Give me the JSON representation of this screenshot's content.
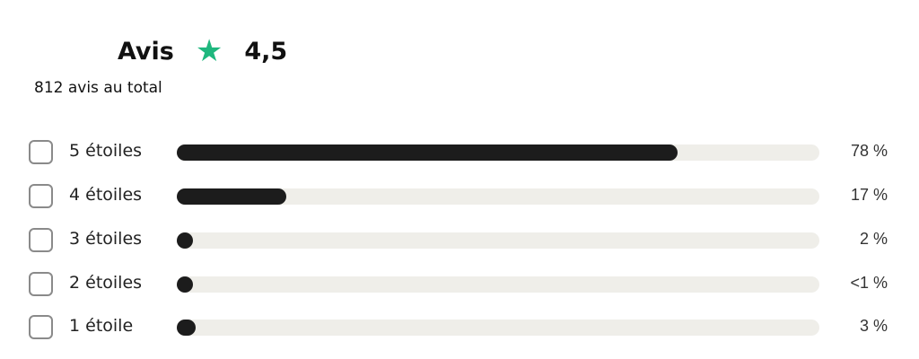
{
  "header": {
    "title": "Avis",
    "star_icon": "star-icon",
    "star_color": "#1fb77e",
    "rating": "4,5",
    "total": "812 avis au total"
  },
  "rows": [
    {
      "label": "5 étoiles",
      "percent_label": "78 %",
      "value": 78,
      "checked": false
    },
    {
      "label": "4 étoiles",
      "percent_label": "17 %",
      "value": 17,
      "checked": false
    },
    {
      "label": "3 étoiles",
      "percent_label": "2 %",
      "value": 2,
      "checked": false
    },
    {
      "label": "2 étoiles",
      "percent_label": "<1 %",
      "value": 0.5,
      "checked": false
    },
    {
      "label": "1 étoile",
      "percent_label": "3 %",
      "value": 3,
      "checked": false
    }
  ]
}
